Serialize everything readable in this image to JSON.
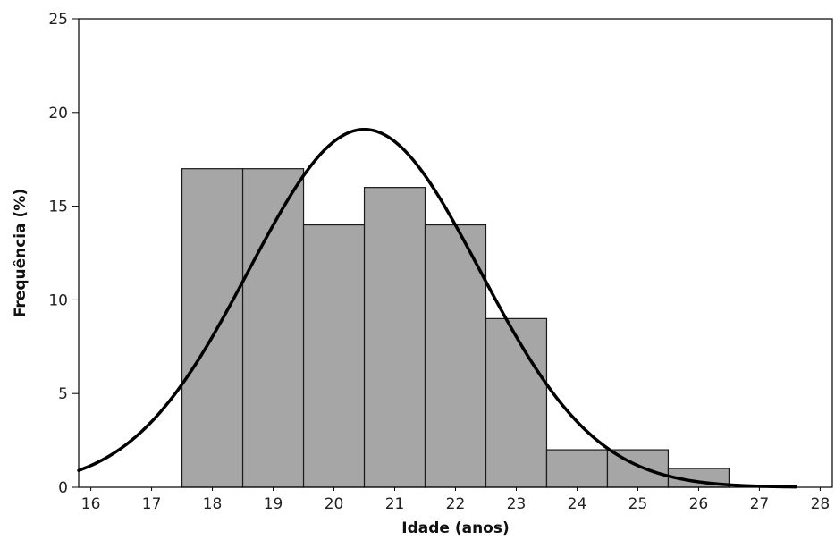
{
  "chart_data": {
    "type": "bar",
    "subtype": "histogram-with-normal-curve",
    "title": "",
    "xlabel": "Idade (anos)",
    "ylabel": "Frequência (%)",
    "xlim": [
      15.8,
      28.2
    ],
    "ylim": [
      0,
      25
    ],
    "x_ticks": [
      16,
      17,
      18,
      19,
      20,
      21,
      22,
      23,
      24,
      25,
      26,
      27,
      28
    ],
    "y_ticks": [
      0,
      5,
      10,
      15,
      20,
      25
    ],
    "bins": [
      {
        "x": 18,
        "value": 17
      },
      {
        "x": 19,
        "value": 17
      },
      {
        "x": 20,
        "value": 14
      },
      {
        "x": 21,
        "value": 16
      },
      {
        "x": 22,
        "value": 14
      },
      {
        "x": 23,
        "value": 9
      },
      {
        "x": 24,
        "value": 2
      },
      {
        "x": 25,
        "value": 2
      },
      {
        "x": 26,
        "value": 1
      }
    ],
    "bin_width": 1,
    "curve": {
      "type": "normal",
      "mean": 20.5,
      "sd": 1.9,
      "peak": 19.1,
      "x_range": [
        15.8,
        27.6
      ]
    },
    "grid": false,
    "colors": {
      "bar_fill": "#a6a6a6",
      "bar_stroke": "#1a1a1a",
      "curve": "#000000",
      "axis": "#000000"
    }
  }
}
